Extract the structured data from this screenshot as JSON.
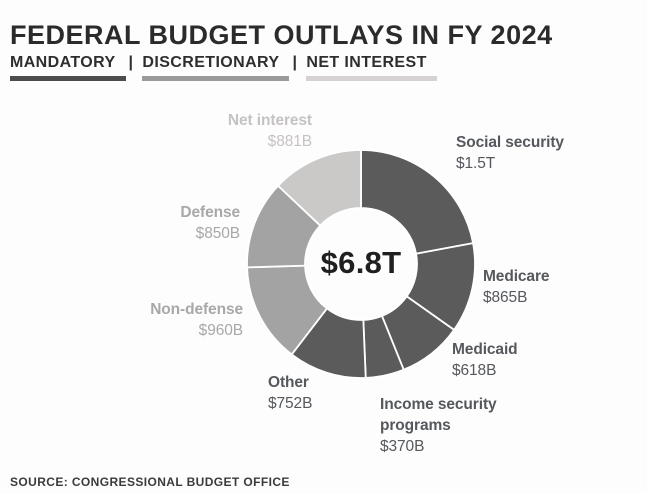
{
  "header": {
    "title": "FEDERAL BUDGET OUTLAYS IN FY 2024",
    "separator": "|",
    "legend": [
      {
        "label": "MANDATORY",
        "key": "mandatory"
      },
      {
        "label": "DISCRETIONARY",
        "key": "discretionary"
      },
      {
        "label": "NET INTEREST",
        "key": "net_interest"
      }
    ]
  },
  "chart_data": {
    "type": "pie",
    "subtype": "donut",
    "title": "Federal budget outlays in FY 2024",
    "center_label": "$6.8T",
    "total_display": "$6.8T",
    "units": "USD billions",
    "legend_position": "top",
    "segments": [
      {
        "label": "Social security",
        "display_value": "$1.5T",
        "value_billions": 1500,
        "group": "mandatory"
      },
      {
        "label": "Medicare",
        "display_value": "$865B",
        "value_billions": 865,
        "group": "mandatory"
      },
      {
        "label": "Medicaid",
        "display_value": "$618B",
        "value_billions": 618,
        "group": "mandatory"
      },
      {
        "label": "Income security programs",
        "display_value": "$370B",
        "value_billions": 370,
        "group": "mandatory"
      },
      {
        "label": "Other",
        "display_value": "$752B",
        "value_billions": 752,
        "group": "mandatory"
      },
      {
        "label": "Non-defense",
        "display_value": "$960B",
        "value_billions": 960,
        "group": "discretionary"
      },
      {
        "label": "Defense",
        "display_value": "$850B",
        "value_billions": 850,
        "group": "discretionary"
      },
      {
        "label": "Net interest",
        "display_value": "$881B",
        "value_billions": 881,
        "group": "net_interest"
      }
    ],
    "group_colors": {
      "mandatory": "#5b5b5b",
      "discretionary": "#a3a3a3",
      "net_interest": "#cbc8c8"
    },
    "label_colors": {
      "mandatory": "#55585c",
      "discretionary": "#a8a8a8",
      "net_interest": "#c6c2c2"
    },
    "legend_underline_colors": {
      "mandatory": "#4d4d4d",
      "discretionary": "#9a9a9a",
      "net_interest": "#d6d2d2"
    },
    "slice_divider_color": "#ffffff",
    "background_color": "#fdfdfd"
  },
  "footer": {
    "source": "SOURCE: CONGRESSIONAL BUDGET OFFICE"
  }
}
